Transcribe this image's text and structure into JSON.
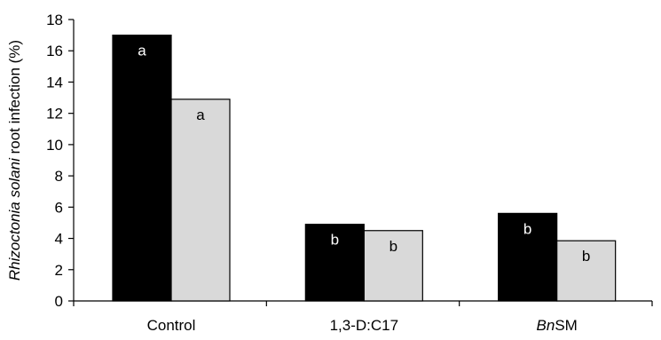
{
  "chart_data": {
    "type": "bar",
    "title": "",
    "ylabel_parts": [
      {
        "text": "Rhizoctonia solani",
        "italic": true
      },
      {
        "text": " root infection (%)",
        "italic": false
      }
    ],
    "xlabel": "",
    "ylim": [
      0,
      18
    ],
    "yticks": [
      0,
      2,
      4,
      6,
      8,
      10,
      12,
      14,
      16,
      18
    ],
    "categories": [
      {
        "parts": [
          {
            "text": "Control",
            "italic": false
          }
        ]
      },
      {
        "parts": [
          {
            "text": "1,3-D:C17",
            "italic": false
          }
        ]
      },
      {
        "parts": [
          {
            "text": "Bn",
            "italic": true
          },
          {
            "text": "SM",
            "italic": false
          }
        ]
      }
    ],
    "series": [
      {
        "color": "#000000",
        "label_color": "#ffffff",
        "values": [
          17.0,
          4.9,
          5.6
        ],
        "letters": [
          "a",
          "b",
          "b"
        ]
      },
      {
        "color": "#d9d9d9",
        "label_color": "#000000",
        "values": [
          12.9,
          4.5,
          3.85
        ],
        "letters": [
          "a",
          "b",
          "b"
        ]
      }
    ],
    "legend": "none",
    "grid": false
  }
}
